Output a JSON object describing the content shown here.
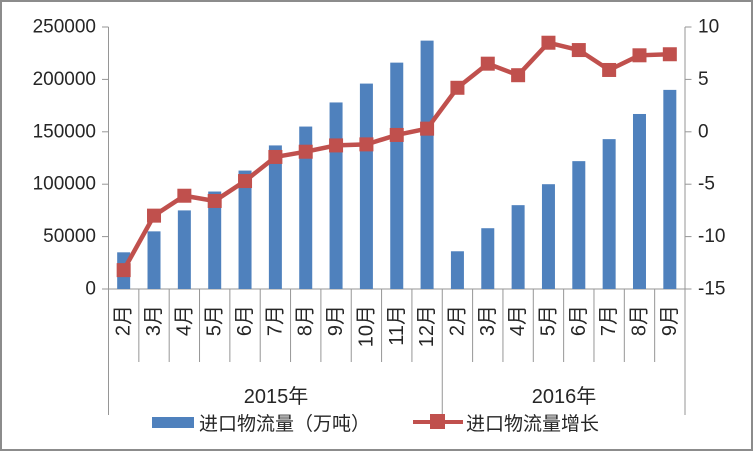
{
  "chart_data": {
    "type": "bar",
    "combo": "bar+line dual axis",
    "title": "",
    "grid": false,
    "legend_position": "bottom",
    "categories": [
      "2月",
      "3月",
      "4月",
      "5月",
      "6月",
      "7月",
      "8月",
      "9月",
      "10月",
      "11月",
      "12月",
      "2月",
      "3月",
      "4月",
      "5月",
      "6月",
      "7月",
      "8月",
      "9月"
    ],
    "category_groups": [
      {
        "label": "2015年",
        "count": 11
      },
      {
        "label": "2016年",
        "count": 8
      }
    ],
    "series": [
      {
        "name": "进口物流量（万吨）",
        "type": "bar",
        "axis": "left",
        "color": "#4F81BD",
        "values": [
          35000,
          55000,
          75000,
          93000,
          113000,
          137000,
          155000,
          178000,
          196000,
          216000,
          237000,
          36000,
          58000,
          80000,
          100000,
          122000,
          143000,
          167000,
          190000
        ]
      },
      {
        "name": "进口物流量增长",
        "type": "line",
        "axis": "right",
        "color": "#C0504D",
        "marker": "square",
        "values": [
          -13.2,
          -8.0,
          -6.1,
          -6.6,
          -4.7,
          -2.4,
          -1.9,
          -1.3,
          -1.2,
          -0.3,
          0.3,
          4.2,
          6.5,
          5.4,
          8.5,
          7.8,
          5.9,
          7.3,
          7.4
        ]
      }
    ],
    "left_axis": {
      "min": 0,
      "max": 250000,
      "ticks": [
        {
          "value": 0,
          "label": "0"
        },
        {
          "value": 50000,
          "label": "50000"
        },
        {
          "value": 100000,
          "label": "100000"
        },
        {
          "value": 150000,
          "label": "150000"
        },
        {
          "value": 200000,
          "label": "200000"
        },
        {
          "value": 250000,
          "label": "250000"
        }
      ]
    },
    "right_axis": {
      "min": -15,
      "max": 10,
      "ticks": [
        {
          "value": -15,
          "label": "-15"
        },
        {
          "value": -10,
          "label": "-10"
        },
        {
          "value": -5,
          "label": "-5"
        },
        {
          "value": 0,
          "label": "0"
        },
        {
          "value": 5,
          "label": "5"
        },
        {
          "value": 10,
          "label": "10"
        }
      ]
    },
    "colors": {
      "bar": "#4F81BD",
      "line": "#C0504D",
      "axis": "#969696",
      "text": "#262626",
      "border": "#8C8C8C"
    }
  }
}
